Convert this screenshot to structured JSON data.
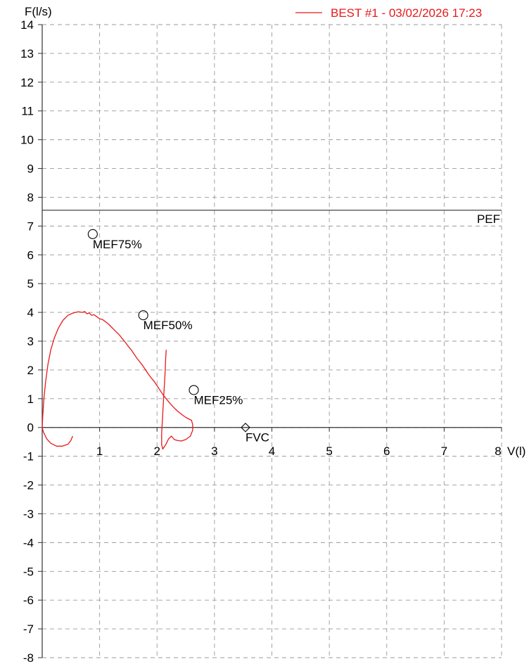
{
  "chart_data": {
    "type": "line",
    "ylabel": "F(l/s)",
    "xlabel": "V(l)",
    "xlim": [
      0,
      8
    ],
    "ylim": [
      -8,
      14
    ],
    "x_ticks": [
      1,
      2,
      3,
      4,
      5,
      6,
      7,
      8
    ],
    "y_ticks": [
      14,
      13,
      12,
      11,
      10,
      9,
      8,
      7,
      6,
      5,
      4,
      3,
      2,
      1,
      0,
      -1,
      -2,
      -3,
      -4,
      -5,
      -6,
      -7,
      -8
    ],
    "grid": true,
    "legend": {
      "position": "top-right",
      "entries": [
        {
          "label": "BEST #1 - 03/02/2026  17:23",
          "color": "#e8191c"
        }
      ]
    },
    "reference_lines": [
      {
        "label": "PEF",
        "y": 7.55,
        "color": "#444444"
      }
    ],
    "markers": [
      {
        "label": "MEF75%",
        "x": 0.88,
        "y": 6.72,
        "shape": "circle"
      },
      {
        "label": "MEF50%",
        "x": 1.76,
        "y": 3.9,
        "shape": "circle"
      },
      {
        "label": "MEF25%",
        "x": 2.64,
        "y": 1.3,
        "shape": "circle"
      },
      {
        "label": "FVC",
        "x": 3.54,
        "y": 0.0,
        "shape": "diamond"
      }
    ],
    "series": [
      {
        "name": "BEST #1 - 03/02/2026  17:23",
        "color": "#e8191c",
        "points": [
          [
            0.53,
            -0.3
          ],
          [
            0.5,
            -0.45
          ],
          [
            0.45,
            -0.58
          ],
          [
            0.35,
            -0.65
          ],
          [
            0.25,
            -0.65
          ],
          [
            0.15,
            -0.55
          ],
          [
            0.08,
            -0.4
          ],
          [
            0.02,
            -0.15
          ],
          [
            0.0,
            0.0
          ],
          [
            0.01,
            0.4
          ],
          [
            0.03,
            1.0
          ],
          [
            0.06,
            1.6
          ],
          [
            0.1,
            2.2
          ],
          [
            0.15,
            2.7
          ],
          [
            0.21,
            3.1
          ],
          [
            0.28,
            3.45
          ],
          [
            0.36,
            3.72
          ],
          [
            0.45,
            3.9
          ],
          [
            0.54,
            3.98
          ],
          [
            0.63,
            4.02
          ],
          [
            0.7,
            4.0
          ],
          [
            0.74,
            4.03
          ],
          [
            0.78,
            3.95
          ],
          [
            0.82,
            3.98
          ],
          [
            0.86,
            3.9
          ],
          [
            0.9,
            3.92
          ],
          [
            0.95,
            3.85
          ],
          [
            1.0,
            3.78
          ],
          [
            1.05,
            3.75
          ],
          [
            1.1,
            3.68
          ],
          [
            1.15,
            3.6
          ],
          [
            1.2,
            3.5
          ],
          [
            1.25,
            3.4
          ],
          [
            1.3,
            3.3
          ],
          [
            1.35,
            3.2
          ],
          [
            1.4,
            3.07
          ],
          [
            1.45,
            2.95
          ],
          [
            1.5,
            2.82
          ],
          [
            1.55,
            2.7
          ],
          [
            1.6,
            2.55
          ],
          [
            1.65,
            2.4
          ],
          [
            1.7,
            2.28
          ],
          [
            1.75,
            2.15
          ],
          [
            1.8,
            2.0
          ],
          [
            1.85,
            1.85
          ],
          [
            1.9,
            1.72
          ],
          [
            1.95,
            1.6
          ],
          [
            2.0,
            1.45
          ],
          [
            2.05,
            1.3
          ],
          [
            2.1,
            1.15
          ],
          [
            2.15,
            1.02
          ],
          [
            2.2,
            0.9
          ],
          [
            2.25,
            0.78
          ],
          [
            2.3,
            0.68
          ],
          [
            2.35,
            0.58
          ],
          [
            2.4,
            0.5
          ],
          [
            2.45,
            0.42
          ],
          [
            2.5,
            0.35
          ],
          [
            2.55,
            0.3
          ],
          [
            2.6,
            0.25
          ],
          [
            2.62,
            0.1
          ],
          [
            2.62,
            -0.1
          ],
          [
            2.58,
            -0.3
          ],
          [
            2.5,
            -0.42
          ],
          [
            2.42,
            -0.47
          ],
          [
            2.35,
            -0.45
          ],
          [
            2.3,
            -0.42
          ],
          [
            2.25,
            -0.3
          ],
          [
            2.2,
            -0.4
          ],
          [
            2.15,
            -0.6
          ],
          [
            2.1,
            -0.75
          ],
          [
            2.08,
            -0.6
          ],
          [
            2.08,
            -0.2
          ],
          [
            2.1,
            0.5
          ],
          [
            2.12,
            1.2
          ],
          [
            2.14,
            1.9
          ],
          [
            2.15,
            2.4
          ],
          [
            2.16,
            2.7
          ]
        ]
      }
    ]
  }
}
